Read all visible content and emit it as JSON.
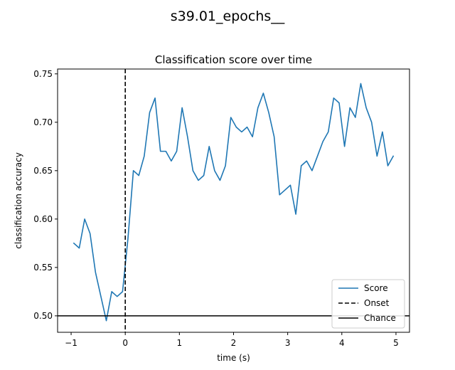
{
  "figure": {
    "suptitle": "s39.01_epochs__"
  },
  "colors": {
    "score": "#1f77b4",
    "reference": "#000000",
    "legend_border": "#cccccc"
  },
  "chart_data": {
    "type": "line",
    "title": "Classification score over time",
    "xlabel": "time (s)",
    "ylabel": "classification accuracy",
    "xlim": [
      -1.25,
      5.25
    ],
    "ylim": [
      0.483,
      0.755
    ],
    "x_ticks": [
      -1,
      0,
      1,
      2,
      3,
      4,
      5
    ],
    "x_tick_labels": [
      "−1",
      "0",
      "1",
      "2",
      "3",
      "4",
      "5"
    ],
    "y_ticks": [
      0.5,
      0.55,
      0.6,
      0.65,
      0.7,
      0.75
    ],
    "y_tick_labels": [
      "0.50",
      "0.55",
      "0.60",
      "0.65",
      "0.70",
      "0.75"
    ],
    "grid": false,
    "legend_position": "bottom-right",
    "series": [
      {
        "name": "Score",
        "style": "solid",
        "x": [
          -0.95,
          -0.85,
          -0.75,
          -0.65,
          -0.55,
          -0.45,
          -0.35,
          -0.25,
          -0.15,
          -0.05,
          0.05,
          0.15,
          0.25,
          0.35,
          0.45,
          0.55,
          0.65,
          0.75,
          0.85,
          0.95,
          1.05,
          1.15,
          1.25,
          1.35,
          1.45,
          1.55,
          1.65,
          1.75,
          1.85,
          1.95,
          2.05,
          2.15,
          2.25,
          2.35,
          2.45,
          2.55,
          2.65,
          2.75,
          2.85,
          2.95,
          3.05,
          3.15,
          3.25,
          3.35,
          3.45,
          3.55,
          3.65,
          3.75,
          3.85,
          3.95,
          4.05,
          4.15,
          4.25,
          4.35,
          4.45,
          4.55,
          4.65,
          4.75,
          4.85,
          4.95
        ],
        "y": [
          0.575,
          0.57,
          0.6,
          0.585,
          0.545,
          0.52,
          0.495,
          0.525,
          0.52,
          0.525,
          0.58,
          0.65,
          0.645,
          0.665,
          0.71,
          0.725,
          0.67,
          0.67,
          0.66,
          0.67,
          0.715,
          0.685,
          0.65,
          0.64,
          0.645,
          0.675,
          0.65,
          0.64,
          0.655,
          0.705,
          0.695,
          0.69,
          0.695,
          0.685,
          0.715,
          0.73,
          0.71,
          0.685,
          0.625,
          0.63,
          0.635,
          0.605,
          0.655,
          0.66,
          0.65,
          0.665,
          0.68,
          0.69,
          0.725,
          0.72,
          0.675,
          0.715,
          0.705,
          0.74,
          0.715,
          0.7,
          0.665,
          0.69,
          0.655,
          0.665
        ]
      },
      {
        "name": "Onset",
        "style": "dashed",
        "type": "vline",
        "x": 0
      },
      {
        "name": "Chance",
        "style": "solid",
        "type": "hline",
        "y": 0.5
      }
    ]
  }
}
